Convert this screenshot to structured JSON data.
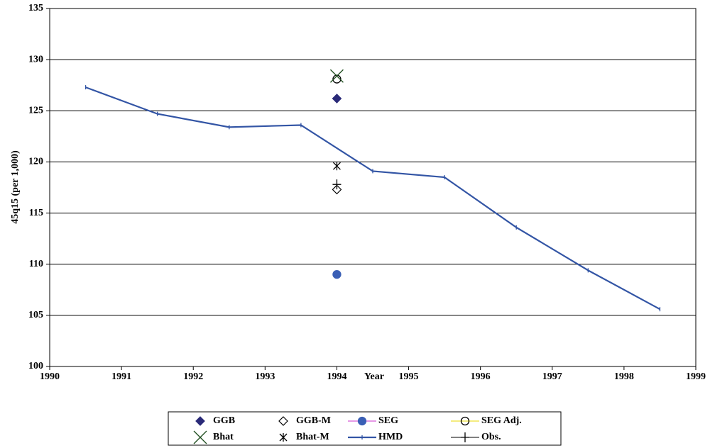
{
  "chart_data": {
    "type": "line",
    "xlabel": "Year",
    "ylabel": "45q15 (per 1,000)",
    "xlim": [
      1990,
      1999
    ],
    "xticks": [
      1990,
      1991,
      1992,
      1993,
      1994,
      1995,
      1996,
      1997,
      1998,
      1999
    ],
    "ylim": [
      100,
      135
    ],
    "yticks": [
      100,
      105,
      110,
      115,
      120,
      125,
      130,
      135
    ],
    "grid": true,
    "legend": "bottom",
    "series": [
      {
        "name": "GGB",
        "color": "#2a2a78",
        "marker": "diamond",
        "x": [
          1994
        ],
        "values": [
          126.2
        ]
      },
      {
        "name": "GGB-M",
        "color": "#000000",
        "marker": "diamond-open",
        "x": [
          1994
        ],
        "values": [
          117.3
        ]
      },
      {
        "name": "SEG",
        "color": "#3a5fb5",
        "marker": "circle",
        "legend_line_color": "#cc33cc",
        "x": [
          1994
        ],
        "values": [
          109.0
        ]
      },
      {
        "name": "SEG Adj.",
        "color": "#000000",
        "marker": "circle-open",
        "legend_line_color": "#e8d800",
        "x": [
          1994
        ],
        "values": [
          128.1
        ]
      },
      {
        "name": "Bhat",
        "color": "#1e4d1e",
        "marker": "x",
        "x": [
          1994
        ],
        "values": [
          128.4
        ]
      },
      {
        "name": "Bhat-M",
        "color": "#000000",
        "marker": "asterisk",
        "x": [
          1994
        ],
        "values": [
          119.6
        ]
      },
      {
        "name": "HMD",
        "color": "#3355a5",
        "marker": "dash",
        "line": true,
        "x": [
          1990.5,
          1991.5,
          1992.5,
          1993.5,
          1994.5,
          1995.5,
          1996.5,
          1997.5,
          1998.5
        ],
        "values": [
          127.3,
          124.7,
          123.4,
          123.6,
          119.1,
          118.5,
          113.6,
          109.4,
          105.6
        ]
      },
      {
        "name": "Obs.",
        "color": "#000000",
        "marker": "plus",
        "legend_line_color": "#000000",
        "x": [
          1994
        ],
        "values": [
          117.8
        ]
      }
    ]
  }
}
